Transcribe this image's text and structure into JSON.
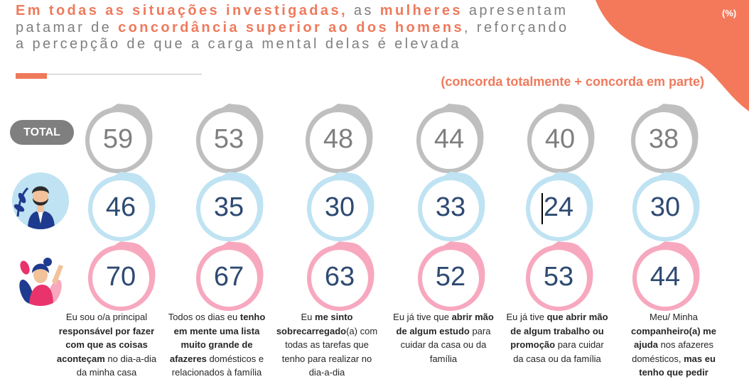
{
  "title": {
    "p1_bold": "Em todas as situações investigadas,",
    "p2": " as ",
    "p3_bold": "mulheres",
    "p4": " apresentam patamar de ",
    "p5_bold": "concordância superior ao dos homens",
    "p6": ", reforçando a percepção de que a carga mental delas é elevada"
  },
  "unit": "(%)",
  "subtitle": "(concorda totalmente + concorda em parte)",
  "rows": {
    "total_label": "TOTAL",
    "total": [
      "59",
      "53",
      "48",
      "44",
      "40",
      "38"
    ],
    "men": [
      "46",
      "35",
      "30",
      "33",
      "24",
      "30"
    ],
    "women": [
      "70",
      "67",
      "63",
      "52",
      "53",
      "44"
    ]
  },
  "colors": {
    "accent": "#ee7a5c",
    "gray": "#bfbfbf",
    "blue": "#bfe3f2",
    "pink": "#f7a8bf",
    "number": "#2e4a72"
  },
  "captions": [
    {
      "a": "Eu sou o/a principal ",
      "b": "responsável por fazer com que as coisas aconteçam",
      "c": " no dia-a-dia da minha casa"
    },
    {
      "a": "Todos os dias eu ",
      "b": "tenho em mente uma lista muito grande de afazeres",
      "c": " domésticos e relacionados à família"
    },
    {
      "a": "Eu ",
      "b": "me sinto sobrecarregado",
      "c": "(a) com todas as tarefas que tenho para realizar no dia-a-dia"
    },
    {
      "a": "Eu já tive que ",
      "b": "abrir mão de algum estudo",
      "c": " para cuidar da casa ou da família"
    },
    {
      "a": "Eu já tive ",
      "b": "que  abrir mão de algum trabalho ou promoção",
      "c": " para cuidar da casa ou da família"
    },
    {
      "a": "Meu/ Minha ",
      "b": "companheiro(a) me ajuda",
      "c": " nos afazeres domésticos, ",
      "d": "mas eu tenho que pedir"
    }
  ],
  "icons": {
    "men_row": "man-avatar-icon",
    "women_row": "woman-avatar-icon"
  }
}
